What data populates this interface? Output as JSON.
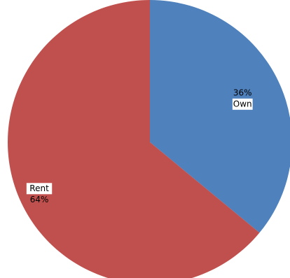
{
  "chart_data": {
    "type": "pie",
    "start_angle_deg": 0,
    "direction": "clockwise",
    "slices": [
      {
        "label": "Own",
        "value": 36,
        "value_label": "36%",
        "color": "#4f81bd"
      },
      {
        "label": "Rent",
        "value": 64,
        "value_label": "64%",
        "color": "#c0504d"
      }
    ],
    "legend": "none",
    "label_placement": "inside"
  }
}
